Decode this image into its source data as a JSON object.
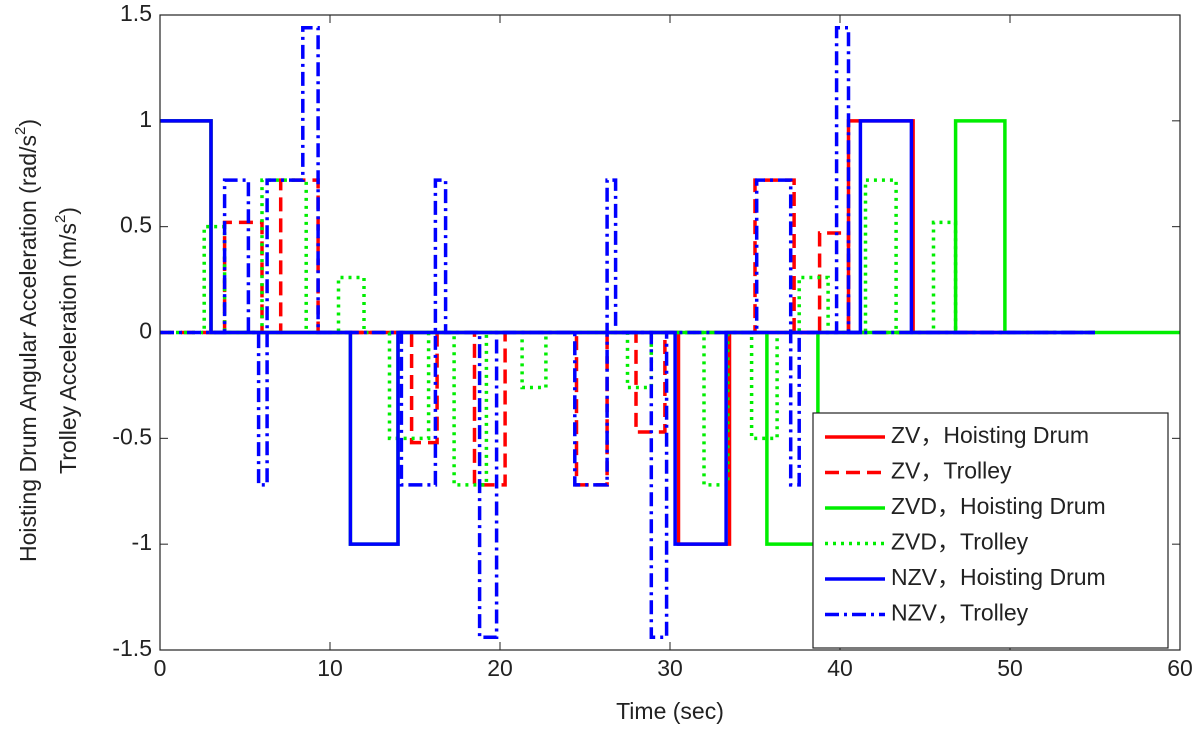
{
  "chart_data": {
    "type": "line",
    "x_label": "Time (sec)",
    "y_label": [
      [
        "Hoisting Drum Angular Acceleration (rad/s",
        "2",
        ")"
      ],
      [
        "Trolley Acceleration (m/s",
        "2",
        ")"
      ]
    ],
    "xlim": [
      0,
      60
    ],
    "xticks": [
      0,
      10,
      20,
      30,
      40,
      50,
      60
    ],
    "ylim": [
      -1.5,
      1.5
    ],
    "yticks": [
      -1.5,
      -1,
      -0.5,
      0,
      0.5,
      1,
      1.5
    ],
    "legend": "lower right",
    "series": [
      {
        "name": "ZV，Hoisting Drum",
        "color": "#ff0000",
        "style": "solid",
        "x": [
          0,
          3,
          3,
          30.5,
          30.5,
          33.5,
          33.5,
          40.5,
          40.5,
          44.3,
          44.3,
          50
        ],
        "values": [
          1,
          1,
          0,
          0,
          -1,
          -1,
          0,
          0,
          1,
          1,
          0,
          0
        ]
      },
      {
        "name": "ZV，Trolley",
        "color": "#ff0000",
        "style": "dashed",
        "x": [
          0,
          3.8,
          3.8,
          6,
          6,
          7.1,
          7.1,
          9.3,
          9.3,
          14.8,
          14.8,
          16.3,
          16.3,
          18.5,
          18.5,
          20.3,
          20.3,
          24.5,
          24.5,
          26.3,
          26.3,
          28,
          28,
          29.7,
          29.7,
          35,
          35,
          37.3,
          37.3,
          38.8,
          38.8,
          40.5,
          40.5,
          55
        ],
        "values": [
          0,
          0,
          0.52,
          0.52,
          0,
          0,
          0.72,
          0.72,
          0,
          0,
          -0.52,
          -0.52,
          0,
          0,
          -0.72,
          -0.72,
          0,
          0,
          -0.72,
          -0.72,
          0,
          0,
          -0.47,
          -0.47,
          0,
          0,
          0.72,
          0.72,
          0,
          0,
          0.47,
          0.47,
          0,
          0
        ]
      },
      {
        "name": "ZVD，Hoisting Drum",
        "color": "#00ee00",
        "style": "solid",
        "x": [
          0,
          3,
          3,
          11.2,
          11.2,
          14,
          14,
          35.7,
          35.7,
          38.7,
          38.7,
          46.8,
          46.8,
          49.7,
          49.7,
          60
        ],
        "values": [
          1,
          1,
          0,
          0,
          -1,
          -1,
          0,
          0,
          -1,
          -1,
          0,
          0,
          1,
          1,
          0,
          0
        ]
      },
      {
        "name": "ZVD，Trolley",
        "color": "#00ee00",
        "style": "dotted",
        "x": [
          0,
          2.6,
          2.6,
          3.8,
          3.8,
          6,
          6,
          8.6,
          8.6,
          10.5,
          10.5,
          12,
          12,
          13.5,
          13.5,
          15.8,
          15.8,
          17.3,
          17.3,
          19.2,
          19.2,
          21.3,
          21.3,
          22.7,
          22.7,
          27.5,
          27.5,
          28.9,
          28.9,
          32,
          32,
          33.4,
          33.4,
          34.8,
          34.8,
          36.3,
          36.3,
          37.6,
          37.6,
          39.3,
          39.3,
          41.5,
          41.5,
          43.3,
          43.3,
          45.5,
          45.5,
          46.8,
          46.8,
          55
        ],
        "values": [
          0,
          0,
          0.5,
          0.5,
          0,
          0,
          0.72,
          0.72,
          0,
          0,
          0.26,
          0.26,
          0,
          0,
          -0.5,
          -0.5,
          0,
          0,
          -0.72,
          -0.72,
          0,
          0,
          -0.26,
          -0.26,
          0,
          0,
          -0.26,
          -0.26,
          0,
          0,
          -0.72,
          -0.72,
          0,
          0,
          -0.5,
          -0.5,
          0,
          0,
          0.26,
          0.26,
          0,
          0,
          0.72,
          0.72,
          0,
          0,
          0.52,
          0.52,
          0,
          0
        ]
      },
      {
        "name": "NZV，Hoisting Drum",
        "color": "#0000ff",
        "style": "solid",
        "x": [
          0,
          3,
          3,
          11.2,
          11.2,
          14,
          14,
          30.3,
          30.3,
          33.3,
          33.3,
          41.2,
          41.2,
          44.2,
          44.2,
          55
        ],
        "values": [
          1,
          1,
          0,
          0,
          -1,
          -1,
          0,
          0,
          -1,
          -1,
          0,
          0,
          1,
          1,
          0,
          0
        ]
      },
      {
        "name": "NZV，Trolley",
        "color": "#0000ff",
        "style": "dashdot",
        "x": [
          0,
          3.8,
          3.8,
          5.2,
          5.2,
          5.8,
          5.8,
          6.3,
          6.3,
          8.4,
          8.4,
          9.3,
          9.3,
          14.2,
          14.2,
          16.2,
          16.2,
          16.8,
          16.8,
          18.8,
          18.8,
          19.8,
          19.8,
          24.4,
          24.4,
          26.3,
          26.3,
          26.8,
          26.8,
          28.9,
          28.9,
          29.8,
          29.8,
          35.1,
          35.1,
          37.1,
          37.1,
          37.6,
          37.6,
          39.8,
          39.8,
          40.5,
          40.5,
          55
        ],
        "values": [
          0,
          0,
          0.72,
          0.72,
          0,
          0,
          -0.72,
          -0.72,
          0.72,
          0.72,
          1.44,
          1.44,
          0,
          0,
          -0.72,
          -0.72,
          0.72,
          0.72,
          0,
          0,
          -1.44,
          -1.44,
          0,
          0,
          -0.72,
          -0.72,
          0.72,
          0.72,
          0,
          0,
          -1.44,
          -1.44,
          0,
          0,
          0.72,
          0.72,
          -0.72,
          -0.72,
          0,
          0,
          1.44,
          1.44,
          0,
          0
        ]
      }
    ]
  }
}
